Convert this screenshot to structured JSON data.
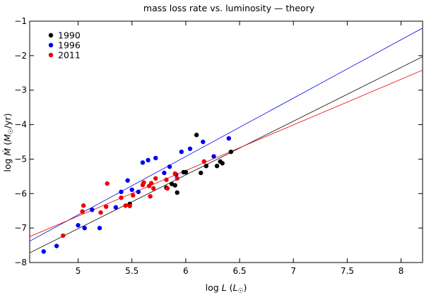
{
  "chart_data": {
    "type": "scatter",
    "title": "mass loss rate vs. luminosity — theory",
    "xlabel": "log L (L☉)",
    "ylabel": "log Ṁ (M☉/yr)",
    "xlim": [
      4.55,
      8.2
    ],
    "ylim": [
      -8,
      -1
    ],
    "xticks": [
      5,
      5.5,
      6,
      6.5,
      7,
      7.5,
      8
    ],
    "xtick_labels": [
      "5",
      "5.5",
      "6",
      "6.5",
      "7",
      "7.5",
      "8"
    ],
    "yticks": [
      -8,
      -7,
      -6,
      -5,
      -4,
      -3,
      -2,
      -1
    ],
    "ytick_labels": [
      "−8",
      "−7",
      "−6",
      "−5",
      "−4",
      "−3",
      "−2",
      "−1"
    ],
    "legend_position": "top-left",
    "series": [
      {
        "name": "1990",
        "color": "#000000",
        "points": [
          [
            5.48,
            -6.3
          ],
          [
            5.82,
            -5.83
          ],
          [
            5.87,
            -5.72
          ],
          [
            5.9,
            -5.76
          ],
          [
            5.92,
            -5.97
          ],
          [
            5.98,
            -5.38
          ],
          [
            6.0,
            -5.38
          ],
          [
            6.1,
            -4.3
          ],
          [
            6.14,
            -5.4
          ],
          [
            6.19,
            -5.2
          ],
          [
            6.29,
            -5.2
          ],
          [
            6.32,
            -5.07
          ],
          [
            6.34,
            -5.12
          ],
          [
            6.42,
            -4.79
          ]
        ],
        "fit": [
          [
            4.55,
            -7.72
          ],
          [
            8.2,
            -2.03
          ]
        ]
      },
      {
        "name": "1996",
        "color": "#0000ee",
        "points": [
          [
            4.68,
            -7.68
          ],
          [
            4.8,
            -7.52
          ],
          [
            5.0,
            -6.92
          ],
          [
            5.06,
            -7.0
          ],
          [
            5.13,
            -6.47
          ],
          [
            5.2,
            -7.0
          ],
          [
            5.35,
            -6.4
          ],
          [
            5.4,
            -5.95
          ],
          [
            5.46,
            -5.62
          ],
          [
            5.5,
            -5.89
          ],
          [
            5.56,
            -5.95
          ],
          [
            5.6,
            -5.1
          ],
          [
            5.65,
            -5.03
          ],
          [
            5.72,
            -4.97
          ],
          [
            5.8,
            -5.4
          ],
          [
            5.85,
            -5.22
          ],
          [
            5.91,
            -5.45
          ],
          [
            5.96,
            -4.79
          ],
          [
            6.04,
            -4.7
          ],
          [
            6.16,
            -4.5
          ],
          [
            6.26,
            -4.92
          ],
          [
            6.4,
            -4.4
          ]
        ],
        "fit": [
          [
            4.55,
            -7.38
          ],
          [
            8.2,
            -1.2
          ]
        ]
      },
      {
        "name": "2011",
        "color": "#ee0000",
        "points": [
          [
            4.86,
            -7.22
          ],
          [
            5.04,
            -6.52
          ],
          [
            5.05,
            -6.35
          ],
          [
            5.21,
            -6.55
          ],
          [
            5.26,
            -6.38
          ],
          [
            5.27,
            -5.71
          ],
          [
            5.4,
            -6.12
          ],
          [
            5.44,
            -6.35
          ],
          [
            5.48,
            -6.36
          ],
          [
            5.51,
            -6.05
          ],
          [
            5.6,
            -5.75
          ],
          [
            5.61,
            -5.68
          ],
          [
            5.66,
            -5.78
          ],
          [
            5.67,
            -6.08
          ],
          [
            5.68,
            -5.7
          ],
          [
            5.7,
            -5.85
          ],
          [
            5.72,
            -5.56
          ],
          [
            5.82,
            -5.6
          ],
          [
            5.83,
            -5.85
          ],
          [
            5.9,
            -5.42
          ],
          [
            5.92,
            -5.56
          ],
          [
            6.17,
            -5.07
          ]
        ],
        "fit": [
          [
            4.55,
            -7.25
          ],
          [
            8.2,
            -2.42
          ]
        ]
      }
    ]
  }
}
